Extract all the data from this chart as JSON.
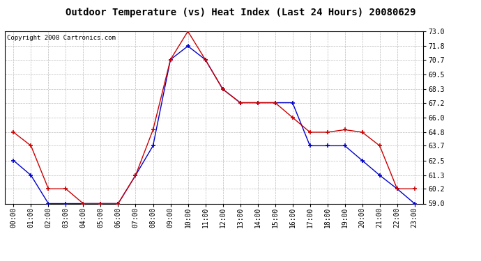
{
  "title": "Outdoor Temperature (vs) Heat Index (Last 24 Hours) 20080629",
  "copyright": "Copyright 2008 Cartronics.com",
  "hours": [
    "00:00",
    "01:00",
    "02:00",
    "03:00",
    "04:00",
    "05:00",
    "06:00",
    "07:00",
    "08:00",
    "09:00",
    "10:00",
    "11:00",
    "12:00",
    "13:00",
    "14:00",
    "15:00",
    "16:00",
    "17:00",
    "18:00",
    "19:00",
    "20:00",
    "21:00",
    "22:00",
    "23:00"
  ],
  "temp": [
    62.5,
    61.3,
    59.0,
    59.0,
    59.0,
    59.0,
    59.0,
    61.3,
    63.7,
    70.7,
    71.8,
    70.7,
    68.3,
    67.2,
    67.2,
    67.2,
    67.2,
    63.7,
    63.7,
    63.7,
    62.5,
    61.3,
    60.2,
    59.0
  ],
  "heat_index": [
    64.8,
    63.7,
    60.2,
    60.2,
    59.0,
    59.0,
    59.0,
    61.3,
    65.0,
    70.7,
    73.0,
    70.7,
    68.3,
    67.2,
    67.2,
    67.2,
    66.0,
    64.8,
    64.8,
    65.0,
    64.8,
    63.7,
    60.2,
    60.2
  ],
  "temp_color": "#0000cc",
  "heat_index_color": "#cc0000",
  "bg_color": "#ffffff",
  "plot_bg_color": "#ffffff",
  "grid_color": "#bbbbbb",
  "ylim_min": 59.0,
  "ylim_max": 73.0,
  "yticks": [
    59.0,
    60.2,
    61.3,
    62.5,
    63.7,
    64.8,
    66.0,
    67.2,
    68.3,
    69.5,
    70.7,
    71.8,
    73.0
  ],
  "title_fontsize": 10,
  "copyright_fontsize": 6.5,
  "tick_fontsize": 7,
  "ytick_fontsize": 7
}
